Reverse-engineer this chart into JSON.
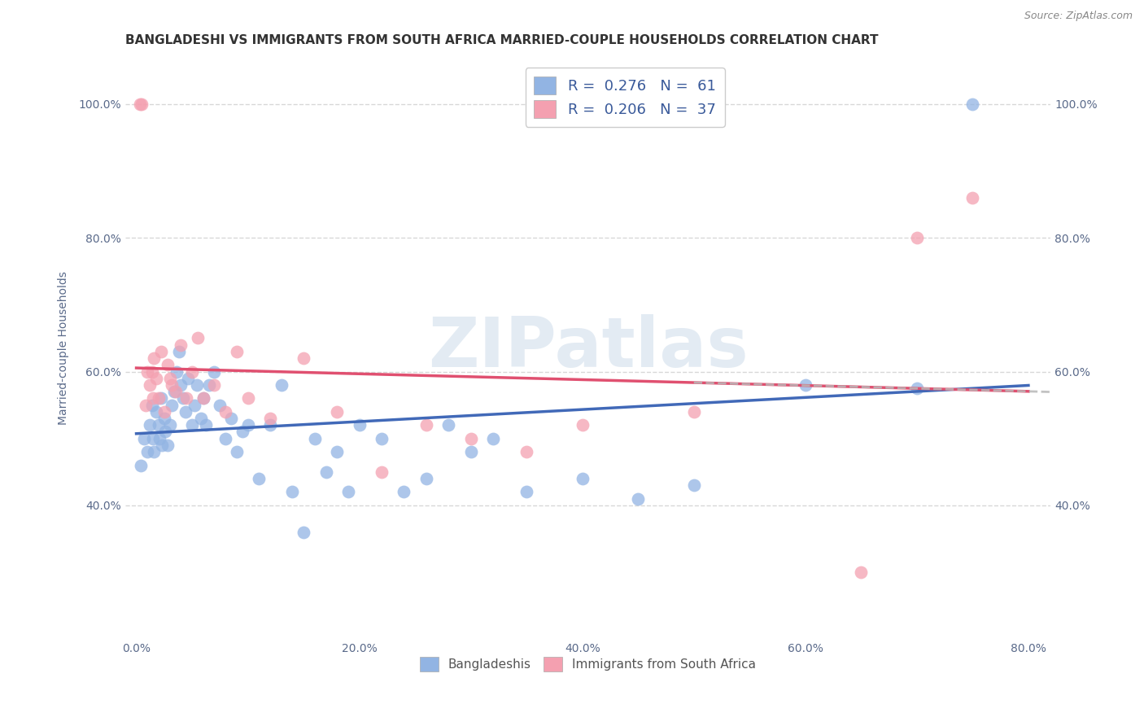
{
  "title": "BANGLADESHI VS IMMIGRANTS FROM SOUTH AFRICA MARRIED-COUPLE HOUSEHOLDS CORRELATION CHART",
  "source": "Source: ZipAtlas.com",
  "ylabel": "Married-couple Households",
  "x_tick_labels": [
    "0.0%",
    "20.0%",
    "40.0%",
    "60.0%",
    "80.0%"
  ],
  "x_tick_values": [
    0.0,
    20.0,
    40.0,
    60.0,
    80.0
  ],
  "y_tick_labels": [
    "40.0%",
    "60.0%",
    "80.0%",
    "100.0%"
  ],
  "y_tick_values": [
    40.0,
    60.0,
    80.0,
    100.0
  ],
  "xlim": [
    -1.0,
    82.0
  ],
  "ylim": [
    20.0,
    107.0
  ],
  "legend_label_blue": "R =  0.276   N =  61",
  "legend_label_pink": "R =  0.206   N =  37",
  "legend_label_blue_bottom": "Bangladeshis",
  "legend_label_pink_bottom": "Immigrants from South Africa",
  "blue_color": "#92b4e3",
  "pink_color": "#f4a0b0",
  "blue_line_color": "#4169b8",
  "pink_line_color": "#e05070",
  "watermark": "ZIPatlas",
  "blue_x": [
    0.4,
    0.7,
    1.0,
    1.2,
    1.4,
    1.5,
    1.6,
    1.8,
    2.0,
    2.1,
    2.2,
    2.3,
    2.5,
    2.6,
    2.8,
    3.0,
    3.2,
    3.4,
    3.6,
    3.8,
    4.0,
    4.2,
    4.4,
    4.6,
    5.0,
    5.2,
    5.4,
    5.8,
    6.0,
    6.2,
    6.5,
    7.0,
    7.5,
    8.0,
    8.5,
    9.0,
    9.5,
    10.0,
    11.0,
    12.0,
    13.0,
    14.0,
    15.0,
    16.0,
    17.0,
    18.0,
    19.0,
    20.0,
    22.0,
    24.0,
    26.0,
    28.0,
    30.0,
    32.0,
    35.0,
    40.0,
    45.0,
    50.0,
    60.0,
    70.0,
    75.0
  ],
  "blue_y": [
    46.0,
    50.0,
    48.0,
    52.0,
    55.0,
    50.0,
    48.0,
    54.0,
    52.0,
    50.0,
    56.0,
    49.0,
    53.0,
    51.0,
    49.0,
    52.0,
    55.0,
    57.0,
    60.0,
    63.0,
    58.0,
    56.0,
    54.0,
    59.0,
    52.0,
    55.0,
    58.0,
    53.0,
    56.0,
    52.0,
    58.0,
    60.0,
    55.0,
    50.0,
    53.0,
    48.0,
    51.0,
    52.0,
    44.0,
    52.0,
    58.0,
    42.0,
    36.0,
    50.0,
    45.0,
    48.0,
    42.0,
    52.0,
    50.0,
    42.0,
    44.0,
    52.0,
    48.0,
    50.0,
    42.0,
    44.0,
    41.0,
    43.0,
    58.0,
    57.5,
    100.0
  ],
  "pink_x": [
    0.3,
    0.5,
    0.8,
    1.0,
    1.2,
    1.4,
    1.5,
    1.6,
    1.8,
    2.0,
    2.2,
    2.5,
    2.8,
    3.0,
    3.2,
    3.5,
    4.0,
    4.5,
    5.0,
    5.5,
    6.0,
    7.0,
    8.0,
    9.0,
    10.0,
    12.0,
    15.0,
    18.0,
    22.0,
    26.0,
    30.0,
    35.0,
    40.0,
    50.0,
    65.0,
    70.0,
    75.0
  ],
  "pink_y": [
    100.0,
    100.0,
    55.0,
    60.0,
    58.0,
    60.0,
    56.0,
    62.0,
    59.0,
    56.0,
    63.0,
    54.0,
    61.0,
    59.0,
    58.0,
    57.0,
    64.0,
    56.0,
    60.0,
    65.0,
    56.0,
    58.0,
    54.0,
    63.0,
    56.0,
    53.0,
    62.0,
    54.0,
    45.0,
    52.0,
    50.0,
    48.0,
    52.0,
    54.0,
    30.0,
    80.0,
    86.0
  ],
  "background_color": "#ffffff",
  "grid_color": "#d8d8d8",
  "title_fontsize": 11,
  "axis_label_fontsize": 10,
  "tick_fontsize": 10
}
